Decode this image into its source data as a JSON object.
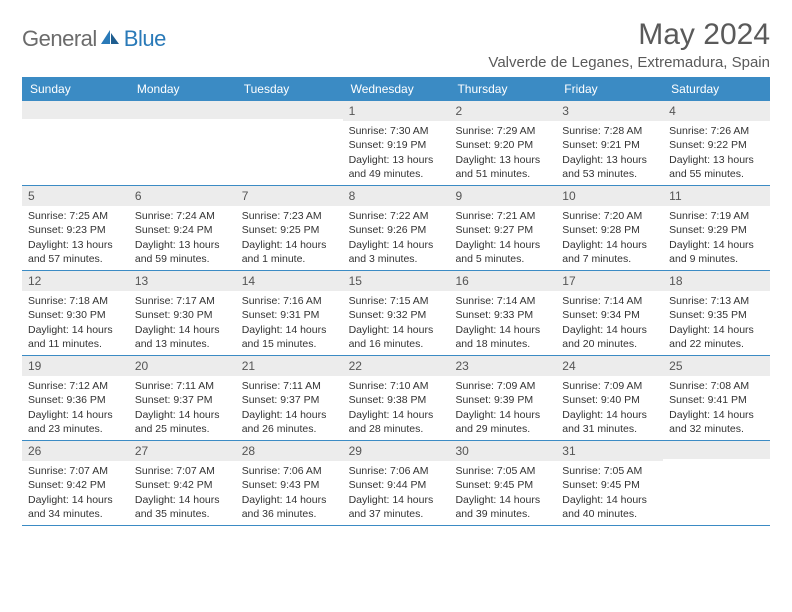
{
  "logo": {
    "text_gray": "General",
    "text_blue": "Blue",
    "shape_color": "#2a7ab8"
  },
  "header": {
    "month_title": "May 2024",
    "location": "Valverde de Leganes, Extremadura, Spain"
  },
  "colors": {
    "header_bg": "#3b8bc4",
    "header_text": "#ffffff",
    "daynum_bg": "#ececec",
    "row_border": "#3b8bc4",
    "body_text": "#333333",
    "title_text": "#5a5a5a"
  },
  "day_names": [
    "Sunday",
    "Monday",
    "Tuesday",
    "Wednesday",
    "Thursday",
    "Friday",
    "Saturday"
  ],
  "weeks": [
    [
      {
        "n": "",
        "sr": "",
        "ss": "",
        "dl": ""
      },
      {
        "n": "",
        "sr": "",
        "ss": "",
        "dl": ""
      },
      {
        "n": "",
        "sr": "",
        "ss": "",
        "dl": ""
      },
      {
        "n": "1",
        "sr": "Sunrise: 7:30 AM",
        "ss": "Sunset: 9:19 PM",
        "dl": "Daylight: 13 hours and 49 minutes."
      },
      {
        "n": "2",
        "sr": "Sunrise: 7:29 AM",
        "ss": "Sunset: 9:20 PM",
        "dl": "Daylight: 13 hours and 51 minutes."
      },
      {
        "n": "3",
        "sr": "Sunrise: 7:28 AM",
        "ss": "Sunset: 9:21 PM",
        "dl": "Daylight: 13 hours and 53 minutes."
      },
      {
        "n": "4",
        "sr": "Sunrise: 7:26 AM",
        "ss": "Sunset: 9:22 PM",
        "dl": "Daylight: 13 hours and 55 minutes."
      }
    ],
    [
      {
        "n": "5",
        "sr": "Sunrise: 7:25 AM",
        "ss": "Sunset: 9:23 PM",
        "dl": "Daylight: 13 hours and 57 minutes."
      },
      {
        "n": "6",
        "sr": "Sunrise: 7:24 AM",
        "ss": "Sunset: 9:24 PM",
        "dl": "Daylight: 13 hours and 59 minutes."
      },
      {
        "n": "7",
        "sr": "Sunrise: 7:23 AM",
        "ss": "Sunset: 9:25 PM",
        "dl": "Daylight: 14 hours and 1 minute."
      },
      {
        "n": "8",
        "sr": "Sunrise: 7:22 AM",
        "ss": "Sunset: 9:26 PM",
        "dl": "Daylight: 14 hours and 3 minutes."
      },
      {
        "n": "9",
        "sr": "Sunrise: 7:21 AM",
        "ss": "Sunset: 9:27 PM",
        "dl": "Daylight: 14 hours and 5 minutes."
      },
      {
        "n": "10",
        "sr": "Sunrise: 7:20 AM",
        "ss": "Sunset: 9:28 PM",
        "dl": "Daylight: 14 hours and 7 minutes."
      },
      {
        "n": "11",
        "sr": "Sunrise: 7:19 AM",
        "ss": "Sunset: 9:29 PM",
        "dl": "Daylight: 14 hours and 9 minutes."
      }
    ],
    [
      {
        "n": "12",
        "sr": "Sunrise: 7:18 AM",
        "ss": "Sunset: 9:30 PM",
        "dl": "Daylight: 14 hours and 11 minutes."
      },
      {
        "n": "13",
        "sr": "Sunrise: 7:17 AM",
        "ss": "Sunset: 9:30 PM",
        "dl": "Daylight: 14 hours and 13 minutes."
      },
      {
        "n": "14",
        "sr": "Sunrise: 7:16 AM",
        "ss": "Sunset: 9:31 PM",
        "dl": "Daylight: 14 hours and 15 minutes."
      },
      {
        "n": "15",
        "sr": "Sunrise: 7:15 AM",
        "ss": "Sunset: 9:32 PM",
        "dl": "Daylight: 14 hours and 16 minutes."
      },
      {
        "n": "16",
        "sr": "Sunrise: 7:14 AM",
        "ss": "Sunset: 9:33 PM",
        "dl": "Daylight: 14 hours and 18 minutes."
      },
      {
        "n": "17",
        "sr": "Sunrise: 7:14 AM",
        "ss": "Sunset: 9:34 PM",
        "dl": "Daylight: 14 hours and 20 minutes."
      },
      {
        "n": "18",
        "sr": "Sunrise: 7:13 AM",
        "ss": "Sunset: 9:35 PM",
        "dl": "Daylight: 14 hours and 22 minutes."
      }
    ],
    [
      {
        "n": "19",
        "sr": "Sunrise: 7:12 AM",
        "ss": "Sunset: 9:36 PM",
        "dl": "Daylight: 14 hours and 23 minutes."
      },
      {
        "n": "20",
        "sr": "Sunrise: 7:11 AM",
        "ss": "Sunset: 9:37 PM",
        "dl": "Daylight: 14 hours and 25 minutes."
      },
      {
        "n": "21",
        "sr": "Sunrise: 7:11 AM",
        "ss": "Sunset: 9:37 PM",
        "dl": "Daylight: 14 hours and 26 minutes."
      },
      {
        "n": "22",
        "sr": "Sunrise: 7:10 AM",
        "ss": "Sunset: 9:38 PM",
        "dl": "Daylight: 14 hours and 28 minutes."
      },
      {
        "n": "23",
        "sr": "Sunrise: 7:09 AM",
        "ss": "Sunset: 9:39 PM",
        "dl": "Daylight: 14 hours and 29 minutes."
      },
      {
        "n": "24",
        "sr": "Sunrise: 7:09 AM",
        "ss": "Sunset: 9:40 PM",
        "dl": "Daylight: 14 hours and 31 minutes."
      },
      {
        "n": "25",
        "sr": "Sunrise: 7:08 AM",
        "ss": "Sunset: 9:41 PM",
        "dl": "Daylight: 14 hours and 32 minutes."
      }
    ],
    [
      {
        "n": "26",
        "sr": "Sunrise: 7:07 AM",
        "ss": "Sunset: 9:42 PM",
        "dl": "Daylight: 14 hours and 34 minutes."
      },
      {
        "n": "27",
        "sr": "Sunrise: 7:07 AM",
        "ss": "Sunset: 9:42 PM",
        "dl": "Daylight: 14 hours and 35 minutes."
      },
      {
        "n": "28",
        "sr": "Sunrise: 7:06 AM",
        "ss": "Sunset: 9:43 PM",
        "dl": "Daylight: 14 hours and 36 minutes."
      },
      {
        "n": "29",
        "sr": "Sunrise: 7:06 AM",
        "ss": "Sunset: 9:44 PM",
        "dl": "Daylight: 14 hours and 37 minutes."
      },
      {
        "n": "30",
        "sr": "Sunrise: 7:05 AM",
        "ss": "Sunset: 9:45 PM",
        "dl": "Daylight: 14 hours and 39 minutes."
      },
      {
        "n": "31",
        "sr": "Sunrise: 7:05 AM",
        "ss": "Sunset: 9:45 PM",
        "dl": "Daylight: 14 hours and 40 minutes."
      },
      {
        "n": "",
        "sr": "",
        "ss": "",
        "dl": ""
      }
    ]
  ]
}
